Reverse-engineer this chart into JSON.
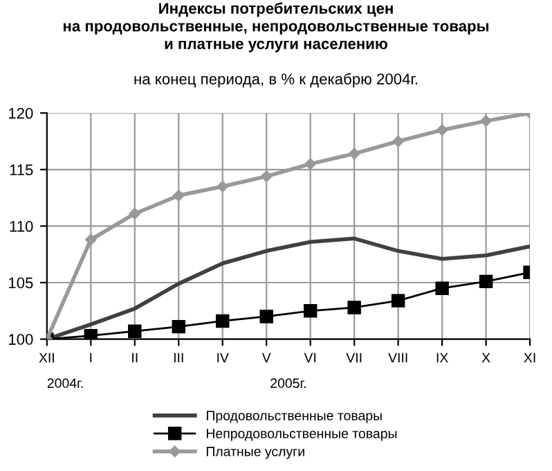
{
  "chart_data": {
    "type": "line",
    "title": "Индексы потребительских цен\nна продовольственные, непродовольственные товары\nи платные услуги населению",
    "subtitle": "на конец периода, в % к декабрю 2004г.",
    "categories": [
      "XII",
      "I",
      "II",
      "III",
      "IV",
      "V",
      "VI",
      "VII",
      "VIII",
      "IX",
      "X",
      "XI"
    ],
    "series": [
      {
        "name": "Продовольственные товары",
        "color": "#404040",
        "marker": "none",
        "values": [
          100,
          101.3,
          102.7,
          104.9,
          106.7,
          107.8,
          108.6,
          108.9,
          107.8,
          107.1,
          107.4,
          108.2
        ]
      },
      {
        "name": "Непродовольственные товары",
        "color": "#000000",
        "marker": "square",
        "values": [
          100,
          100.3,
          100.7,
          101.1,
          101.6,
          102.0,
          102.5,
          102.8,
          103.4,
          104.5,
          105.1,
          105.9
        ]
      },
      {
        "name": "Платные услуги",
        "color": "#999999",
        "marker": "diamond",
        "values": [
          100,
          108.8,
          111.1,
          112.7,
          113.5,
          114.4,
          115.5,
          116.4,
          117.5,
          118.5,
          119.3,
          120
        ]
      }
    ],
    "annotations": [
      "2004г.",
      "2005г."
    ],
    "ylim": [
      100,
      120
    ],
    "yticks": [
      100,
      105,
      110,
      115,
      120
    ],
    "grid": true,
    "legend": "bottom"
  }
}
